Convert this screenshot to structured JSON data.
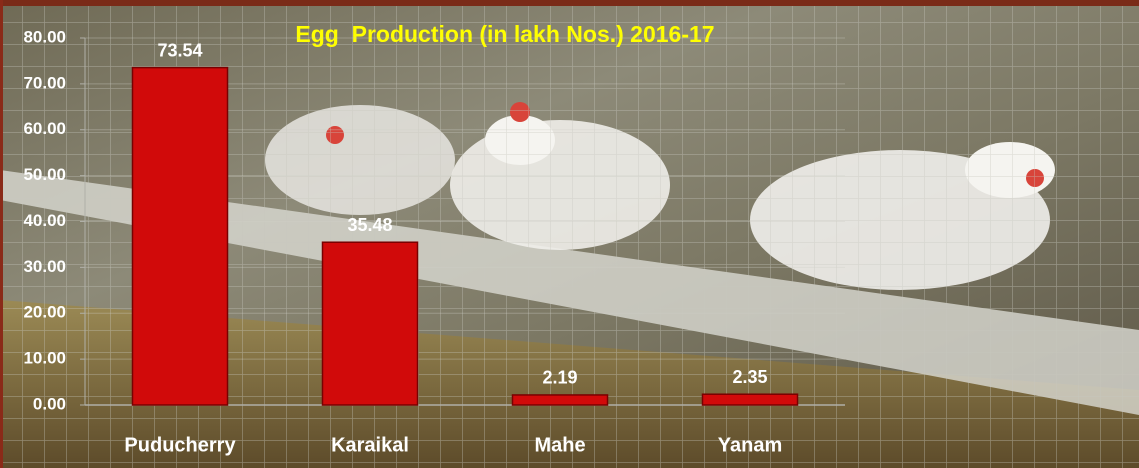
{
  "chart_data": {
    "type": "bar",
    "title": "Egg  Production (in lakh Nos.) 2016-17",
    "categories": [
      "Puducherry",
      "Karaikal",
      "Mahe",
      "Yanam"
    ],
    "values": [
      73.54,
      35.48,
      2.19,
      2.35
    ],
    "color": "#d10a0a",
    "ylim": [
      0,
      80
    ],
    "yticks": [
      {
        "value": 0,
        "label": "0.00"
      },
      {
        "value": 10,
        "label": "10.00"
      },
      {
        "value": 20,
        "label": "20.00"
      },
      {
        "value": 30,
        "label": "30.00"
      },
      {
        "value": 40,
        "label": "40.00"
      },
      {
        "value": 50,
        "label": "50.00"
      },
      {
        "value": 60,
        "label": "60.00"
      },
      {
        "value": 70,
        "label": "70.00"
      },
      {
        "value": 80,
        "label": "80.00"
      }
    ],
    "grid": true
  }
}
